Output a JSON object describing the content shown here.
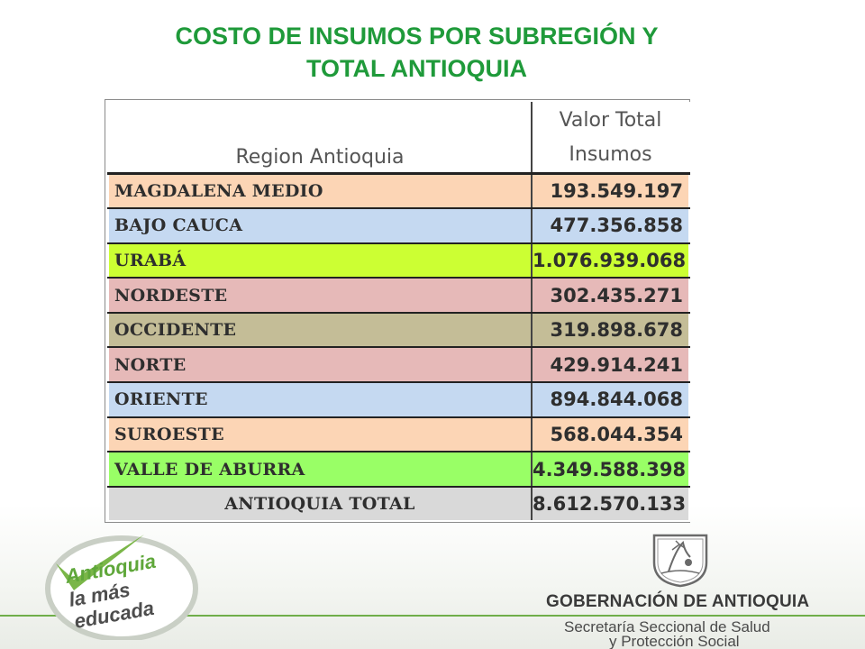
{
  "title": {
    "line1": "COSTO  DE INSUMOS POR SUBREGIÓN Y",
    "line2": "TOTAL ANTIOQUIA"
  },
  "table": {
    "header_region": "Region Antioquia",
    "header_value_line1": "Valor Total",
    "header_value_line2": "Insumos",
    "rows": [
      {
        "region": "MAGDALENA MEDIO",
        "value": "193.549.197",
        "color": "#fcd5b5"
      },
      {
        "region": "BAJO CAUCA",
        "value": "477.356.858",
        "color": "#c5d9f1"
      },
      {
        "region": "URABÁ",
        "value": "1.076.939.068",
        "color": "#ccff33"
      },
      {
        "region": "NORDESTE",
        "value": "302.435.271",
        "color": "#e6b9b8"
      },
      {
        "region": "OCCIDENTE",
        "value": "319.898.678",
        "color": "#c4bd97"
      },
      {
        "region": "NORTE",
        "value": "429.914.241",
        "color": "#e6b9b8"
      },
      {
        "region": "ORIENTE",
        "value": "894.844.068",
        "color": "#c5d9f1"
      },
      {
        "region": "SUROESTE",
        "value": "568.044.354",
        "color": "#fcd5b5"
      },
      {
        "region": "VALLE DE ABURRA",
        "value": "4.349.588.398",
        "color": "#99ff66"
      }
    ],
    "total": {
      "region": "ANTIOQUIA TOTAL",
      "value": "8.612.570.133",
      "color": "#d9d9d9"
    }
  },
  "logo_left": {
    "line1": "Antioquia",
    "line2": "la más",
    "line3": "educada",
    "icon": "checkmark-icon"
  },
  "logo_right": {
    "icon": "coat-of-arms-icon"
  },
  "footer": {
    "government": "GOBERNACIÓN DE ANTIOQUIA",
    "department_line1": "Secretaría Seccional de Salud",
    "department_line2": "y Protección Social"
  }
}
